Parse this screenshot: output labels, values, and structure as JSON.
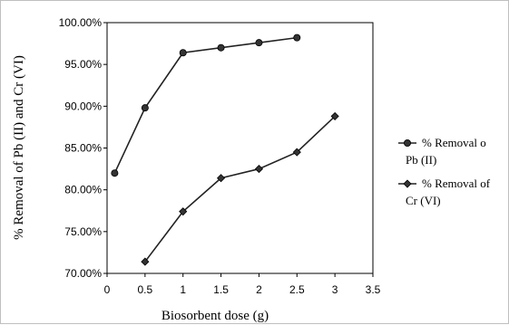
{
  "chart_data": {
    "type": "line",
    "title": "",
    "xlabel": "Biosorbent dose (g)",
    "ylabel": "% Removal of Pb (II) and Cr (VI)",
    "xlim": [
      0,
      3.5
    ],
    "ylim": [
      70,
      100
    ],
    "x_ticks": [
      0,
      0.5,
      1,
      1.5,
      2,
      2.5,
      3,
      3.5
    ],
    "x_tick_labels": [
      "0",
      "0.5",
      "1",
      "1.5",
      "2",
      "2.5",
      "3",
      "3.5"
    ],
    "y_ticks": [
      70,
      75,
      80,
      85,
      90,
      95,
      100
    ],
    "y_tick_labels": [
      "70.00%",
      "75.00%",
      "80.00%",
      "85.00%",
      "90.00%",
      "95.00%",
      "100.00%"
    ],
    "grid": false,
    "legend_position": "right",
    "series": [
      {
        "name_lines": [
          "% Removal o",
          "Pb (II)"
        ],
        "marker": "circle",
        "color": "#333333",
        "x": [
          0.1,
          0.5,
          1,
          1.5,
          2,
          2.5
        ],
        "y": [
          82.0,
          89.8,
          96.4,
          97.0,
          97.6,
          98.2
        ]
      },
      {
        "name_lines": [
          "% Removal of",
          "Cr (VI)"
        ],
        "marker": "diamond",
        "color": "#333333",
        "x": [
          0.5,
          1,
          1.5,
          2,
          2.5,
          3
        ],
        "y": [
          71.4,
          77.4,
          81.4,
          82.5,
          84.5,
          88.8
        ]
      }
    ]
  }
}
